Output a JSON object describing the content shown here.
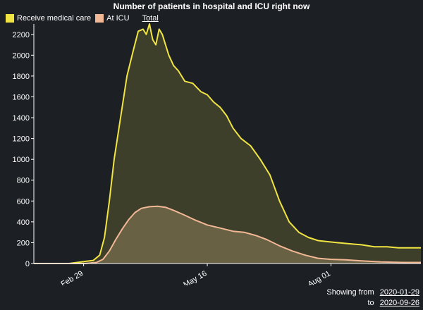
{
  "chart_data": {
    "type": "area",
    "title": "Number of patients in hospital and ICU right now",
    "legend": {
      "placement": "top-left",
      "total_label": "Total"
    },
    "xlabel": "",
    "ylabel": "",
    "x_range": [
      "2020-01-29",
      "2020-09-26"
    ],
    "ylim": [
      0,
      2300
    ],
    "yticks": [
      0,
      200,
      400,
      600,
      800,
      1000,
      1200,
      1400,
      1600,
      1800,
      2000,
      2200
    ],
    "xticks": [
      {
        "date": "2020-02-29",
        "label": "Feb 29"
      },
      {
        "date": "2020-05-16",
        "label": "May 16"
      },
      {
        "date": "2020-08-01",
        "label": "Aug 01"
      }
    ],
    "grid": false,
    "series": [
      {
        "name": "Receive medical care",
        "color": "#f0e442",
        "fill": "#3e3f2b",
        "x": [
          "2020-01-29",
          "2020-02-20",
          "2020-03-01",
          "2020-03-06",
          "2020-03-10",
          "2020-03-13",
          "2020-03-16",
          "2020-03-19",
          "2020-03-23",
          "2020-03-27",
          "2020-03-31",
          "2020-04-03",
          "2020-04-06",
          "2020-04-08",
          "2020-04-10",
          "2020-04-12",
          "2020-04-14",
          "2020-04-16",
          "2020-04-18",
          "2020-04-20",
          "2020-04-22",
          "2020-04-25",
          "2020-04-28",
          "2020-05-02",
          "2020-05-07",
          "2020-05-12",
          "2020-05-16",
          "2020-05-20",
          "2020-05-24",
          "2020-05-28",
          "2020-06-01",
          "2020-06-06",
          "2020-06-12",
          "2020-06-18",
          "2020-06-24",
          "2020-06-30",
          "2020-07-06",
          "2020-07-12",
          "2020-07-18",
          "2020-07-24",
          "2020-07-30",
          "2020-08-05",
          "2020-08-12",
          "2020-08-20",
          "2020-08-28",
          "2020-09-05",
          "2020-09-12",
          "2020-09-19",
          "2020-09-26"
        ],
        "values": [
          0,
          0,
          20,
          30,
          80,
          250,
          600,
          1000,
          1400,
          1800,
          2050,
          2230,
          2250,
          2200,
          2300,
          2150,
          2100,
          2250,
          2200,
          2100,
          2000,
          1900,
          1850,
          1750,
          1730,
          1650,
          1620,
          1550,
          1500,
          1420,
          1300,
          1200,
          1130,
          1000,
          850,
          600,
          400,
          300,
          250,
          220,
          210,
          200,
          190,
          180,
          160,
          160,
          150,
          150,
          150
        ]
      },
      {
        "name": "At ICU",
        "color": "#f2b896",
        "fill": "#686143",
        "x": [
          "2020-01-29",
          "2020-03-01",
          "2020-03-08",
          "2020-03-12",
          "2020-03-16",
          "2020-03-20",
          "2020-03-24",
          "2020-03-28",
          "2020-04-01",
          "2020-04-05",
          "2020-04-10",
          "2020-04-15",
          "2020-04-20",
          "2020-04-25",
          "2020-05-01",
          "2020-05-08",
          "2020-05-16",
          "2020-05-24",
          "2020-06-01",
          "2020-06-08",
          "2020-06-15",
          "2020-06-22",
          "2020-06-30",
          "2020-07-08",
          "2020-07-16",
          "2020-07-24",
          "2020-08-01",
          "2020-08-10",
          "2020-08-20",
          "2020-09-01",
          "2020-09-15",
          "2020-09-26"
        ],
        "values": [
          0,
          0,
          10,
          40,
          120,
          230,
          330,
          420,
          490,
          530,
          545,
          550,
          540,
          510,
          470,
          420,
          370,
          340,
          310,
          300,
          270,
          230,
          170,
          120,
          80,
          50,
          40,
          35,
          25,
          15,
          10,
          10
        ]
      }
    ]
  },
  "footer": {
    "showing_from_label": "Showing from",
    "from_date": "2020-01-29",
    "to_label": "to",
    "to_date": "2020-09-26"
  }
}
